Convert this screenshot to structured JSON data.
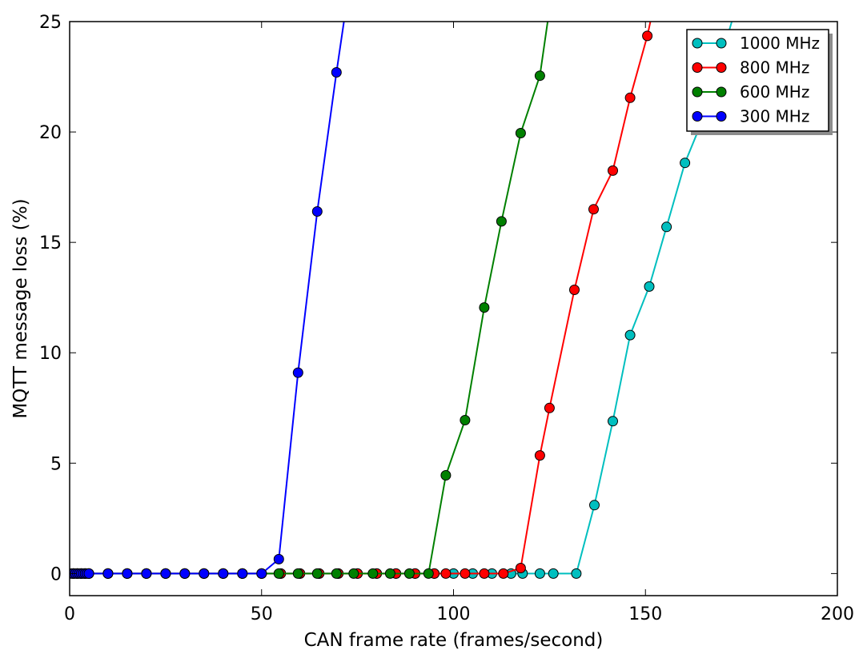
{
  "chart_data": {
    "type": "line",
    "title": "",
    "xlabel": "CAN frame rate (frames/second)",
    "ylabel": "MQTT message loss (%)",
    "xlim": [
      0,
      200
    ],
    "ylim": [
      -1,
      25
    ],
    "xticks": [
      0,
      50,
      100,
      150,
      200
    ],
    "yticks": [
      0,
      5,
      10,
      15,
      20,
      25
    ],
    "grid": false,
    "legend_position": "top-right",
    "series": [
      {
        "name": "1000 MHz",
        "color": "#00bfbf",
        "x": [
          1,
          2,
          3,
          4,
          5,
          10,
          15,
          20,
          25,
          30,
          35,
          40,
          45,
          50,
          55,
          60,
          65,
          70,
          75,
          80,
          85,
          90,
          95,
          100,
          105,
          110,
          115,
          118,
          122.5,
          126,
          132,
          136.7,
          141.5,
          146,
          151,
          155.5,
          160.3,
          165,
          170,
          175
        ],
        "y": [
          0,
          0,
          0,
          0,
          0,
          0,
          0,
          0,
          0,
          0,
          0,
          0,
          0,
          0,
          0,
          0,
          0,
          0,
          0,
          0,
          0,
          0,
          0,
          0,
          0,
          0,
          0,
          0,
          0,
          0,
          0,
          3.1,
          6.9,
          10.8,
          13.0,
          15.7,
          18.6,
          20.6,
          23.5,
          26.5
        ]
      },
      {
        "name": "800 MHz",
        "color": "#ff0000",
        "x": [
          1,
          2,
          3,
          4,
          5,
          10,
          15,
          20,
          25,
          30,
          35,
          40,
          45,
          50,
          55,
          60,
          65,
          70,
          75,
          80,
          85,
          90,
          95,
          98,
          103,
          108,
          113,
          117.5,
          122.5,
          125,
          131.5,
          136.5,
          141.5,
          146,
          150.5,
          155
        ],
        "y": [
          0,
          0,
          0,
          0,
          0,
          0,
          0,
          0,
          0,
          0,
          0,
          0,
          0,
          0,
          0,
          0,
          0,
          0,
          0,
          0,
          0,
          0,
          0,
          0,
          0,
          0,
          0,
          0.25,
          5.35,
          7.5,
          12.85,
          16.5,
          18.25,
          21.55,
          24.35,
          28
        ]
      },
      {
        "name": "600 MHz",
        "color": "#008000",
        "x": [
          1,
          2,
          3,
          4,
          5,
          10,
          15,
          20,
          25,
          30,
          35,
          40,
          45,
          50,
          54.5,
          59.5,
          64.5,
          69.5,
          74,
          79,
          83.5,
          88.5,
          93.5,
          98,
          103,
          108,
          112.5,
          117.5,
          122.5,
          127
        ],
        "y": [
          0,
          0,
          0,
          0,
          0,
          0,
          0,
          0,
          0,
          0,
          0,
          0,
          0,
          0,
          0,
          0,
          0,
          0,
          0,
          0,
          0,
          0,
          0,
          4.45,
          6.95,
          12.05,
          15.95,
          19.95,
          22.55,
          28
        ]
      },
      {
        "name": "300 MHz",
        "color": "#0000ff",
        "x": [
          0.5,
          1,
          1.5,
          2,
          2.5,
          3,
          3.5,
          4,
          4.5,
          5,
          10,
          15,
          20,
          25,
          30,
          35,
          40,
          45,
          50,
          54.5,
          59.5,
          64.5,
          69.5,
          74
        ],
        "y": [
          0,
          0,
          0,
          0,
          0,
          0,
          0,
          0,
          0,
          0,
          0,
          0,
          0,
          0,
          0,
          0,
          0,
          0,
          0,
          0.65,
          9.1,
          16.4,
          22.7,
          28
        ]
      }
    ]
  }
}
